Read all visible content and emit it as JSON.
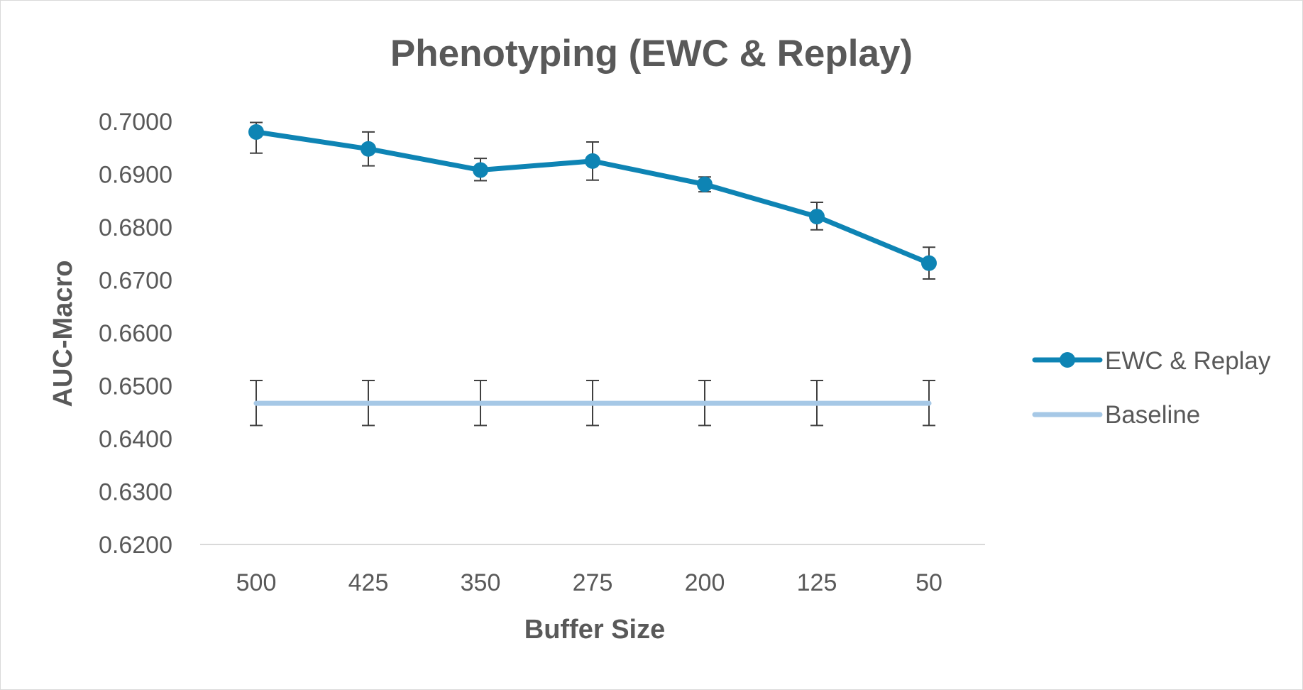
{
  "chart_data": {
    "type": "line",
    "title": "Phenotyping (EWC & Replay)",
    "xlabel": "Buffer Size",
    "ylabel": "AUC-Macro",
    "categories": [
      "500",
      "425",
      "350",
      "275",
      "200",
      "125",
      "50"
    ],
    "ylim": [
      0.62,
      0.7
    ],
    "yticks": [
      "0.6200",
      "0.6300",
      "0.6400",
      "0.6500",
      "0.6600",
      "0.6700",
      "0.6800",
      "0.6900",
      "0.7000"
    ],
    "grid": false,
    "legend_position": "right",
    "series": [
      {
        "name": "EWC & Replay",
        "color": "#0e84b4",
        "marker": "circle",
        "values": [
          0.698,
          0.6948,
          0.6908,
          0.6925,
          0.6881,
          0.682,
          0.6732
        ],
        "err_upper": [
          0.0018,
          0.0032,
          0.0022,
          0.0036,
          0.0014,
          0.0027,
          0.003
        ],
        "err_lower": [
          0.004,
          0.0032,
          0.002,
          0.0036,
          0.0014,
          0.0025,
          0.003
        ]
      },
      {
        "name": "Baseline",
        "color": "#a6c8e6",
        "marker": "none",
        "values": [
          0.6467,
          0.6467,
          0.6467,
          0.6467,
          0.6467,
          0.6467,
          0.6467
        ],
        "err_upper": [
          0.0043,
          0.0043,
          0.0043,
          0.0043,
          0.0043,
          0.0043,
          0.0043
        ],
        "err_lower": [
          0.0042,
          0.0042,
          0.0042,
          0.0042,
          0.0042,
          0.0042,
          0.0042
        ]
      }
    ],
    "error_bar_color": "#404040",
    "axis_line_color": "#d9d9d9",
    "text_color": "#595959"
  }
}
